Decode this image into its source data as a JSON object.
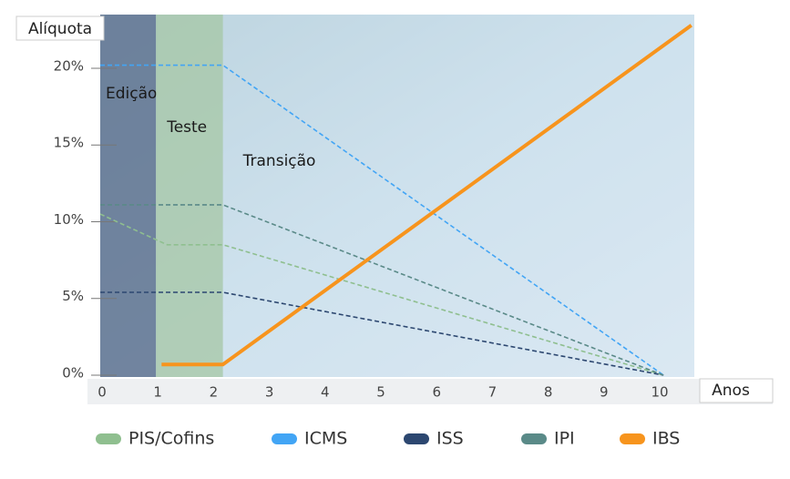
{
  "chart_data": {
    "type": "line",
    "y_label": "Alíquota",
    "x_label": "Anos",
    "xlim": [
      0,
      10.8
    ],
    "ylim": [
      0,
      23.5
    ],
    "xticks": [
      0,
      1,
      2,
      3,
      4,
      5,
      6,
      7,
      8,
      9,
      10
    ],
    "yticks": [
      {
        "value": 0,
        "label": "0%"
      },
      {
        "value": 5,
        "label": "5%"
      },
      {
        "value": 10,
        "label": "10%"
      },
      {
        "value": 15,
        "label": "15%"
      },
      {
        "value": 20,
        "label": "20%"
      }
    ],
    "phases": [
      {
        "label": "Edição",
        "start": 0,
        "end": 1,
        "color": "#5f7390"
      },
      {
        "label": "Teste",
        "start": 1,
        "end": 2.2,
        "color": "#a9c9ad"
      },
      {
        "label": "Transição",
        "start": 2.2,
        "end": 10.8,
        "color": "#c6dcea"
      }
    ],
    "series": [
      {
        "name": "PIS/Cofins",
        "color": "#8fbf8f",
        "style": "dashed",
        "x": [
          0,
          1.2,
          2.2,
          10.1
        ],
        "values": [
          10.5,
          8.5,
          8.5,
          0
        ]
      },
      {
        "name": "ICMS",
        "color": "#42a5f5",
        "style": "dashed",
        "x": [
          0,
          2.2,
          10.1
        ],
        "values": [
          20.2,
          20.2,
          0
        ]
      },
      {
        "name": "ISS",
        "color": "#2c4770",
        "style": "dashed",
        "x": [
          0,
          2.2,
          10.1
        ],
        "values": [
          5.4,
          5.4,
          0
        ]
      },
      {
        "name": "IPI",
        "color": "#5a8a88",
        "style": "dashed",
        "x": [
          0,
          2.2,
          10.1
        ],
        "values": [
          11.1,
          11.1,
          0
        ]
      },
      {
        "name": "IBS",
        "color": "#f7941d",
        "style": "solid",
        "x": [
          1.1,
          2.2,
          10.6
        ],
        "values": [
          0.7,
          0.7,
          22.8
        ]
      }
    ]
  }
}
